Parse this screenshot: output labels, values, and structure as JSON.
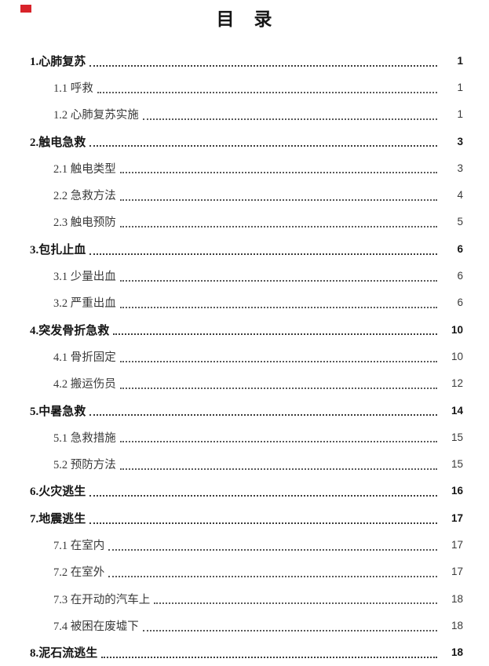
{
  "page": {
    "title": "目　录"
  },
  "colors": {
    "text": "#1f1f1f",
    "leader_dots": "#3c3c3c",
    "red_mark": "#d8232a",
    "background": "#ffffff"
  },
  "toc": {
    "entries": [
      {
        "label": "1.心肺复苏",
        "page": "1",
        "level": 1
      },
      {
        "label": "1.1 呼救",
        "page": "1",
        "level": 2
      },
      {
        "label": "1.2 心肺复苏实施",
        "page": "1",
        "level": 2
      },
      {
        "label": "2.触电急救",
        "page": "3",
        "level": 1
      },
      {
        "label": "2.1 触电类型",
        "page": "3",
        "level": 2
      },
      {
        "label": "2.2 急救方法",
        "page": "4",
        "level": 2
      },
      {
        "label": "2.3 触电预防",
        "page": "5",
        "level": 2
      },
      {
        "label": "3.包扎止血",
        "page": "6",
        "level": 1
      },
      {
        "label": "3.1 少量出血",
        "page": "6",
        "level": 2
      },
      {
        "label": "3.2 严重出血",
        "page": "6",
        "level": 2
      },
      {
        "label": "4.突发骨折急救",
        "page": "10",
        "level": 1
      },
      {
        "label": "4.1 骨折固定",
        "page": "10",
        "level": 2
      },
      {
        "label": "4.2 搬运伤员",
        "page": "12",
        "level": 2
      },
      {
        "label": "5.中暑急救",
        "page": "14",
        "level": 1
      },
      {
        "label": "5.1 急救措施",
        "page": "15",
        "level": 2
      },
      {
        "label": "5.2 预防方法",
        "page": "15",
        "level": 2
      },
      {
        "label": "6.火灾逃生",
        "page": "16",
        "level": 1
      },
      {
        "label": "7.地震逃生",
        "page": "17",
        "level": 1
      },
      {
        "label": "7.1 在室内",
        "page": "17",
        "level": 2
      },
      {
        "label": "7.2 在室外",
        "page": "17",
        "level": 2
      },
      {
        "label": "7.3 在开动的汽车上",
        "page": "18",
        "level": 2
      },
      {
        "label": "7.4 被困在废墟下",
        "page": "18",
        "level": 2
      },
      {
        "label": "8.泥石流逃生",
        "page": "18",
        "level": 1
      }
    ]
  }
}
